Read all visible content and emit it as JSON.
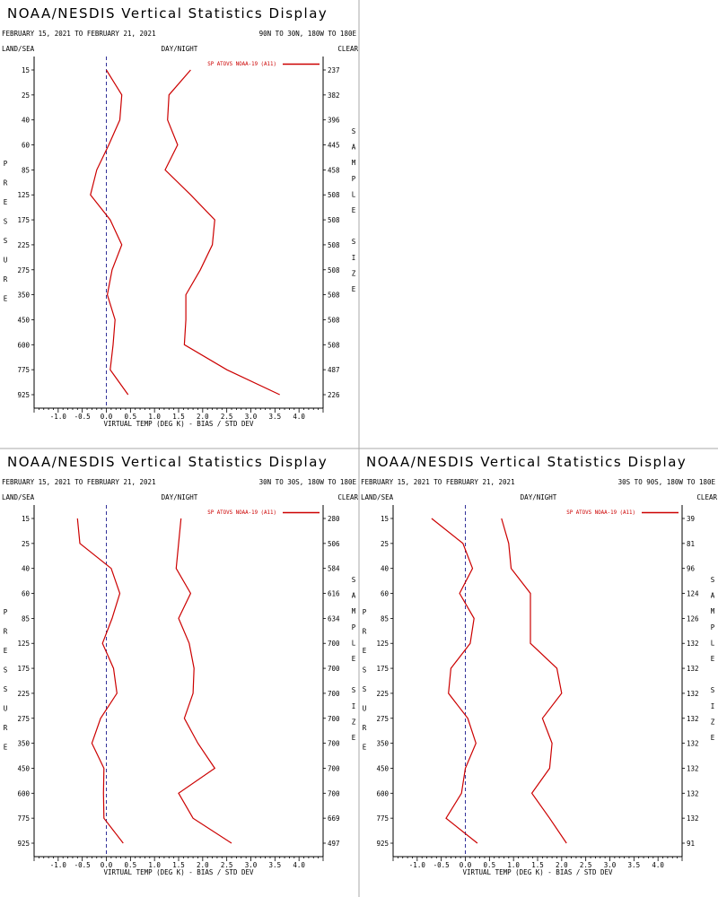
{
  "header": {
    "title": "NOAA/NESDIS Vertical Statistics Display",
    "date_range": "FEBRUARY 15, 2021 TO FEBRUARY 21, 2021",
    "land_sea": "LAND/SEA",
    "day_night": "DAY/NIGHT",
    "clear": "CLEAR",
    "left_axis_label": [
      "P",
      "R",
      "E",
      "S",
      "S",
      "U",
      "R",
      "E"
    ],
    "right_axis_label": [
      "S",
      "A",
      "M",
      "P",
      "L",
      "E",
      "",
      "S",
      "I",
      "Z",
      "E"
    ]
  },
  "colors": {
    "series": "#cc0000",
    "zero_line": "#000080",
    "axis": "#000000",
    "divider": "#aaaaaa"
  },
  "chart_data": [
    {
      "type": "line",
      "region": "90N TO 30N, 180W TO 180E",
      "legend": "SP ATOVS NOAA-19 (A11)",
      "xlabel": "VIRTUAL TEMP (DEG K) - BIAS / STD DEV",
      "xlim": [
        -1.5,
        4.5
      ],
      "xticks": [
        "-1.0",
        "-0.5",
        "0.0",
        "0.5",
        "1.0",
        "1.5",
        "2.0",
        "2.5",
        "3.0",
        "3.5",
        "4.0"
      ],
      "pressure_levels": [
        "15",
        "25",
        "40",
        "60",
        "85",
        "125",
        "175",
        "225",
        "275",
        "350",
        "450",
        "600",
        "775",
        "925"
      ],
      "sample_size": [
        "237",
        "382",
        "396",
        "445",
        "458",
        "508",
        "508",
        "508",
        "508",
        "508",
        "508",
        "508",
        "487",
        "226"
      ],
      "series": [
        {
          "values": [
            0.0,
            0.32,
            0.28,
            0.05,
            -0.2,
            -0.33,
            0.08,
            0.32,
            0.12,
            0.02,
            0.18,
            0.14,
            0.08,
            0.45
          ]
        },
        {
          "values": [
            1.75,
            1.3,
            1.27,
            1.48,
            1.22,
            1.75,
            2.25,
            2.2,
            1.95,
            1.65,
            1.65,
            1.62,
            2.5,
            3.6
          ]
        }
      ]
    },
    {
      "type": "line",
      "region": "30N TO 30S, 180W TO 180E",
      "legend": "SP ATOVS NOAA-19 (A11)",
      "xlabel": "VIRTUAL TEMP (DEG K) - BIAS / STD DEV",
      "xlim": [
        -1.5,
        4.5
      ],
      "xticks": [
        "-1.0",
        "-0.5",
        "0.0",
        "0.5",
        "1.0",
        "1.5",
        "2.0",
        "2.5",
        "3.0",
        "3.5",
        "4.0"
      ],
      "pressure_levels": [
        "15",
        "25",
        "40",
        "60",
        "85",
        "125",
        "175",
        "225",
        "275",
        "350",
        "450",
        "600",
        "775",
        "925"
      ],
      "sample_size": [
        "280",
        "506",
        "584",
        "616",
        "634",
        "700",
        "700",
        "700",
        "700",
        "700",
        "700",
        "700",
        "669",
        "497"
      ],
      "series": [
        {
          "values": [
            -0.6,
            -0.55,
            0.1,
            0.28,
            0.12,
            -0.08,
            0.15,
            0.22,
            -0.12,
            -0.3,
            -0.05,
            -0.06,
            -0.05,
            0.35
          ]
        },
        {
          "values": [
            1.55,
            1.5,
            1.45,
            1.75,
            1.5,
            1.72,
            1.82,
            1.8,
            1.62,
            1.9,
            2.25,
            1.5,
            1.8,
            2.6
          ]
        }
      ]
    },
    {
      "type": "line",
      "region": "30S TO 90S, 180W TO 180E",
      "legend": "SP ATOVS NOAA-19 (A11)",
      "xlabel": "VIRTUAL TEMP (DEG K) - BIAS / STD DEV",
      "xlim": [
        -1.5,
        4.5
      ],
      "xticks": [
        "-1.0",
        "-0.5",
        "0.0",
        "0.5",
        "1.0",
        "1.5",
        "2.0",
        "2.5",
        "3.0",
        "3.5",
        "4.0"
      ],
      "pressure_levels": [
        "15",
        "25",
        "40",
        "60",
        "85",
        "125",
        "175",
        "225",
        "275",
        "350",
        "450",
        "600",
        "775",
        "925"
      ],
      "sample_size": [
        "39",
        "81",
        "96",
        "124",
        "126",
        "132",
        "132",
        "132",
        "132",
        "132",
        "132",
        "132",
        "132",
        "91"
      ],
      "series": [
        {
          "values": [
            -0.7,
            -0.05,
            0.15,
            -0.12,
            0.18,
            0.1,
            -0.3,
            -0.35,
            0.05,
            0.22,
            0.0,
            -0.08,
            -0.4,
            0.25
          ]
        },
        {
          "values": [
            0.75,
            0.9,
            0.95,
            1.35,
            1.35,
            1.35,
            1.9,
            2.0,
            1.6,
            1.8,
            1.75,
            1.38,
            1.75,
            2.1
          ]
        }
      ]
    }
  ]
}
